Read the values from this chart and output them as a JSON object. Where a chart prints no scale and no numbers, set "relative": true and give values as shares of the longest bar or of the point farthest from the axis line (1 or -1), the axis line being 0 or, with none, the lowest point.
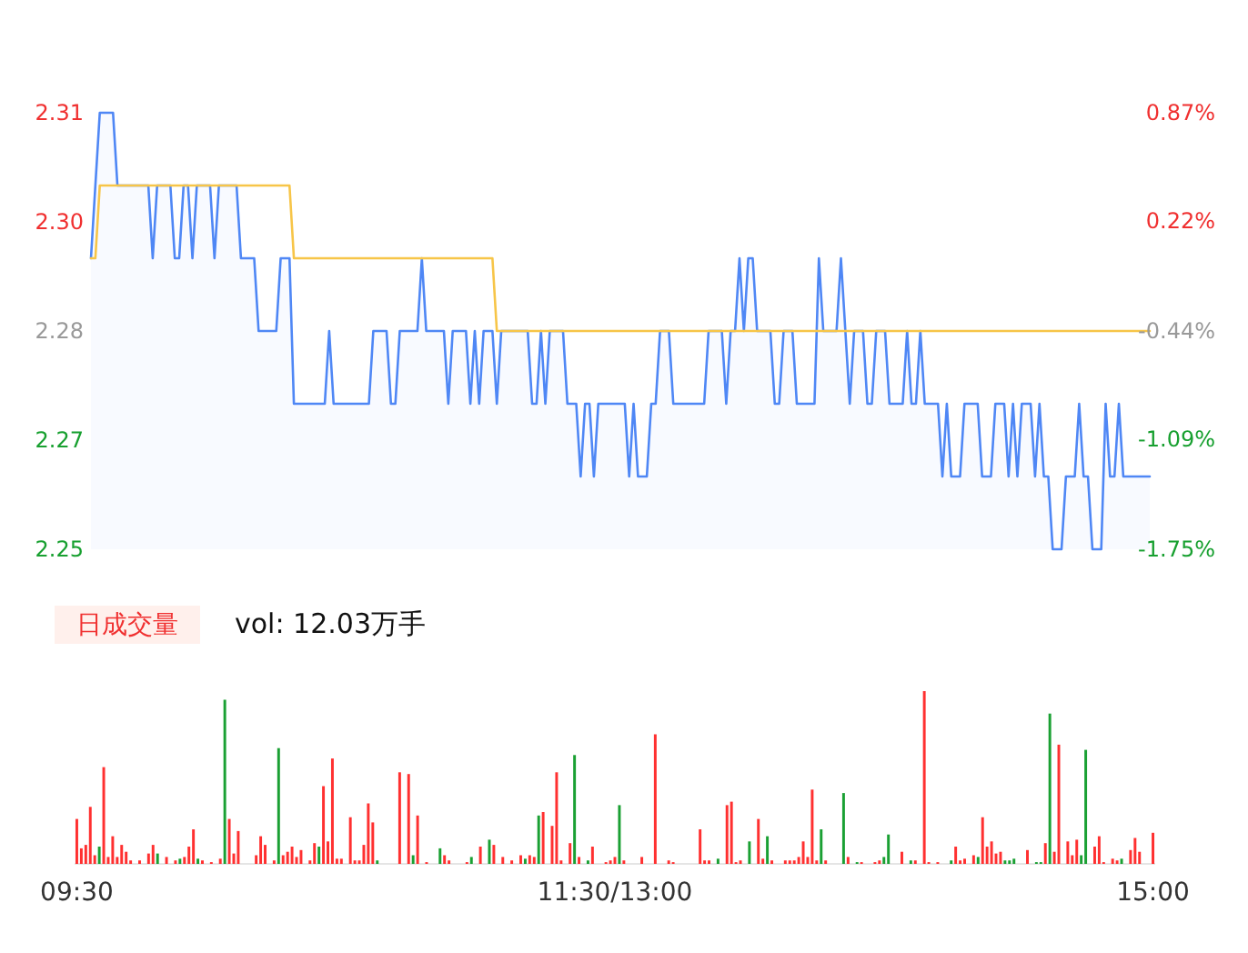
{
  "chart_data": [
    {
      "type": "line",
      "categories": [
        null,
        null,
        null,
        null,
        null,
        null,
        null,
        null,
        null,
        null,
        null,
        null,
        null,
        null,
        null,
        null,
        null,
        null,
        null,
        null,
        null,
        null,
        null,
        null,
        null,
        null,
        null,
        null,
        null,
        null,
        null,
        null,
        null,
        null,
        null,
        null,
        null,
        null,
        null,
        null,
        null,
        null,
        null,
        null,
        null,
        null,
        null,
        null,
        null,
        null,
        null,
        null,
        null,
        null,
        null,
        null,
        null,
        null,
        null,
        null,
        null,
        null,
        null,
        null,
        null,
        null,
        null,
        null,
        null,
        null,
        null,
        null,
        null,
        null,
        null,
        null,
        null,
        null,
        null,
        null,
        null,
        null,
        null,
        null,
        null,
        null,
        null,
        null,
        null,
        null,
        null,
        null,
        null,
        null,
        null,
        null,
        null,
        null,
        null,
        null,
        null,
        null,
        null,
        null,
        null,
        null,
        null,
        null,
        null,
        null,
        null,
        null,
        null,
        null,
        null,
        null,
        null,
        null,
        null,
        null,
        null,
        null,
        null,
        null,
        null,
        null,
        null,
        null,
        null,
        null,
        null,
        null,
        null,
        null,
        null,
        null,
        null,
        null,
        null,
        null,
        null,
        null,
        null,
        null,
        null,
        null,
        null,
        null,
        null,
        null,
        null,
        null,
        null,
        null,
        null,
        null,
        null,
        null,
        null,
        null,
        null,
        null,
        null,
        null,
        null,
        null,
        null,
        null,
        null,
        null,
        null,
        null,
        null,
        null,
        null,
        null,
        null,
        null,
        null,
        null,
        null,
        null,
        null,
        null,
        null,
        null,
        null,
        null,
        null,
        null,
        null,
        null,
        null,
        null,
        null,
        null,
        null,
        null,
        null,
        null,
        null,
        null,
        null,
        null,
        null,
        null,
        null,
        null,
        null,
        null,
        null,
        null,
        null,
        null,
        null,
        null,
        null,
        null,
        null,
        null,
        null,
        null,
        null,
        null,
        null,
        null,
        null,
        null,
        null,
        null,
        null,
        null,
        null,
        null,
        null,
        null,
        null,
        null,
        null,
        null,
        null
      ],
      "ylim": [
        2.25,
        2.31
      ],
      "yticks": [
        2.25,
        {
          "value": 2.265,
          "label": "2.27"
        },
        2.28,
        {
          "value": 2.295,
          "label": "2.30"
        },
        2.31
      ],
      "y2lim": [
        -1.75,
        0.87
      ],
      "y2ticks": [
        {
          "value": -1.75,
          "label": "-1.75%"
        },
        {
          "value": -1.09,
          "label": "-1.09%"
        },
        {
          "value": -0.44,
          "label": "-0.44%"
        },
        {
          "value": 0.22,
          "label": "0.22%"
        },
        {
          "value": 0.87,
          "label": "0.87%"
        }
      ],
      "tick_labels": "y",
      "series": [
        {
          "type": "area",
          "color": "#4f87f5",
          "values": [
            2.29,
            2.3,
            2.31,
            2.31,
            2.31,
            2.31,
            2.3,
            2.3,
            2.3,
            2.3,
            2.3,
            2.3,
            2.3,
            2.3,
            2.29,
            2.3,
            2.3,
            2.3,
            2.3,
            2.29,
            2.29,
            2.3,
            2.3,
            2.29,
            2.3,
            2.3,
            2.3,
            2.3,
            2.29,
            2.3,
            2.3,
            2.3,
            2.3,
            2.3,
            2.29,
            2.29,
            2.29,
            2.29,
            2.28,
            2.28,
            2.28,
            2.28,
            2.28,
            2.29,
            2.29,
            2.29,
            2.27,
            2.27,
            2.27,
            2.27,
            2.27,
            2.27,
            2.27,
            2.27,
            2.28,
            2.27,
            2.27,
            2.27,
            2.27,
            2.27,
            2.27,
            2.27,
            2.27,
            2.27,
            2.28,
            2.28,
            2.28,
            2.28,
            2.27,
            2.27,
            2.28,
            2.28,
            2.28,
            2.28,
            2.28,
            2.29,
            2.28,
            2.28,
            2.28,
            2.28,
            2.28,
            2.27,
            2.28,
            2.28,
            2.28,
            2.28,
            2.27,
            2.28,
            2.27,
            2.28,
            2.28,
            2.28,
            2.27,
            2.28,
            2.28,
            2.28,
            2.28,
            2.28,
            2.28,
            2.28,
            2.27,
            2.27,
            2.28,
            2.27,
            2.28,
            2.28,
            2.28,
            2.28,
            2.27,
            2.27,
            2.27,
            2.26,
            2.27,
            2.27,
            2.26,
            2.27,
            2.27,
            2.27,
            2.27,
            2.27,
            2.27,
            2.27,
            2.26,
            2.27,
            2.26,
            2.26,
            2.26,
            2.27,
            2.27,
            2.28,
            2.28,
            2.28,
            2.27,
            2.27,
            2.27,
            2.27,
            2.27,
            2.27,
            2.27,
            2.27,
            2.28,
            2.28,
            2.28,
            2.28,
            2.27,
            2.28,
            2.28,
            2.29,
            2.28,
            2.29,
            2.29,
            2.28,
            2.28,
            2.28,
            2.28,
            2.27,
            2.27,
            2.28,
            2.28,
            2.28,
            2.27,
            2.27,
            2.27,
            2.27,
            2.27,
            2.29,
            2.28,
            2.28,
            2.28,
            2.28,
            2.29,
            2.28,
            2.27,
            2.28,
            2.28,
            2.28,
            2.27,
            2.27,
            2.28,
            2.28,
            2.28,
            2.27,
            2.27,
            2.27,
            2.27,
            2.28,
            2.27,
            2.27,
            2.28,
            2.27,
            2.27,
            2.27,
            2.27,
            2.26,
            2.27,
            2.26,
            2.26,
            2.26,
            2.27,
            2.27,
            2.27,
            2.27,
            2.26,
            2.26,
            2.26,
            2.27,
            2.27,
            2.27,
            2.26,
            2.27,
            2.26,
            2.27,
            2.27,
            2.27,
            2.26,
            2.27,
            2.26,
            2.26,
            2.25,
            2.25,
            2.25,
            2.26,
            2.26,
            2.26,
            2.27,
            2.26,
            2.26,
            2.25,
            2.25,
            2.25,
            2.27,
            2.26,
            2.26,
            2.27,
            2.26,
            2.26,
            2.26,
            2.26,
            2.26,
            2.26,
            2.26
          ]
        },
        {
          "type": "line",
          "color": "#f7c548",
          "values": [
            2.29,
            2.29,
            2.3,
            2.3,
            2.3,
            2.3,
            2.3,
            2.3,
            2.3,
            2.3,
            2.3,
            2.3,
            2.3,
            2.3,
            2.3,
            2.3,
            2.3,
            2.3,
            2.3,
            2.3,
            2.3,
            2.3,
            2.3,
            2.3,
            2.3,
            2.3,
            2.3,
            2.3,
            2.3,
            2.3,
            2.3,
            2.3,
            2.3,
            2.3,
            2.3,
            2.3,
            2.3,
            2.3,
            2.3,
            2.3,
            2.3,
            2.3,
            2.3,
            2.3,
            2.3,
            2.3,
            2.29,
            2.29,
            2.29,
            2.29,
            2.29,
            2.29,
            2.29,
            2.29,
            2.29,
            2.29,
            2.29,
            2.29,
            2.29,
            2.29,
            2.29,
            2.29,
            2.29,
            2.29,
            2.29,
            2.29,
            2.29,
            2.29,
            2.29,
            2.29,
            2.29,
            2.29,
            2.29,
            2.29,
            2.29,
            2.29,
            2.29,
            2.29,
            2.29,
            2.29,
            2.29,
            2.29,
            2.29,
            2.29,
            2.29,
            2.29,
            2.29,
            2.29,
            2.29,
            2.29,
            2.29,
            2.29,
            2.28,
            2.28,
            2.28,
            2.28,
            2.28,
            2.28,
            2.28,
            2.28,
            2.28,
            2.28,
            2.28,
            2.28,
            2.28,
            2.28,
            2.28,
            2.28,
            2.28,
            2.28,
            2.28,
            2.28,
            2.28,
            2.28,
            2.28,
            2.28,
            2.28,
            2.28,
            2.28,
            2.28,
            2.28,
            2.28,
            2.28,
            2.28,
            2.28,
            2.28,
            2.28,
            2.28,
            2.28,
            2.28,
            2.28,
            2.28,
            2.28,
            2.28,
            2.28,
            2.28,
            2.28,
            2.28,
            2.28,
            2.28,
            2.28,
            2.28,
            2.28,
            2.28,
            2.28,
            2.28,
            2.28,
            2.28,
            2.28,
            2.28,
            2.28,
            2.28,
            2.28,
            2.28,
            2.28,
            2.28,
            2.28,
            2.28,
            2.28,
            2.28,
            2.28,
            2.28,
            2.28,
            2.28,
            2.28,
            2.28,
            2.28,
            2.28,
            2.28,
            2.28,
            2.28,
            2.28,
            2.28,
            2.28,
            2.28,
            2.28,
            2.28,
            2.28,
            2.28,
            2.28,
            2.28,
            2.28,
            2.28,
            2.28,
            2.28,
            2.28,
            2.28,
            2.28,
            2.28,
            2.28,
            2.28,
            2.28,
            2.28,
            2.28,
            2.28,
            2.28,
            2.28,
            2.28,
            2.28,
            2.28,
            2.28,
            2.28,
            2.28,
            2.28,
            2.28,
            2.28,
            2.28,
            2.28,
            2.28,
            2.28,
            2.28,
            2.28,
            2.28,
            2.28,
            2.28,
            2.28,
            2.28,
            2.28,
            2.28,
            2.28,
            2.28,
            2.28,
            2.28,
            2.28,
            2.28,
            2.28,
            2.28,
            2.28,
            2.28,
            2.28,
            2.28,
            2.28,
            2.28,
            2.28,
            2.28,
            2.28,
            2.28,
            2.28,
            2.28,
            2.28,
            2.28
          ]
        }
      ]
    },
    {
      "type": "bar",
      "relative": true,
      "tick_labels": "x",
      "annotations": [
        "日成交量",
        "vol: 12.03万手"
      ],
      "categories": [
        "09:30",
        null,
        null,
        null,
        null,
        null,
        null,
        null,
        null,
        null,
        null,
        null,
        null,
        null,
        null,
        null,
        null,
        null,
        null,
        null,
        null,
        null,
        null,
        null,
        null,
        null,
        null,
        null,
        null,
        null,
        null,
        null,
        null,
        null,
        null,
        null,
        null,
        null,
        null,
        null,
        null,
        null,
        null,
        null,
        null,
        null,
        null,
        null,
        null,
        null,
        null,
        null,
        null,
        null,
        null,
        null,
        null,
        null,
        null,
        null,
        null,
        null,
        null,
        null,
        null,
        null,
        null,
        null,
        null,
        null,
        null,
        null,
        null,
        null,
        null,
        null,
        null,
        null,
        null,
        null,
        null,
        null,
        null,
        null,
        null,
        null,
        null,
        null,
        null,
        null,
        null,
        null,
        null,
        null,
        null,
        null,
        null,
        null,
        null,
        null,
        null,
        null,
        null,
        null,
        null,
        null,
        null,
        null,
        null,
        null,
        null,
        null,
        null,
        null,
        null,
        null,
        null,
        null,
        null,
        null,
        "11:30/13:00",
        null,
        null,
        null,
        null,
        null,
        null,
        null,
        null,
        null,
        null,
        null,
        null,
        null,
        null,
        null,
        null,
        null,
        null,
        null,
        null,
        null,
        null,
        null,
        null,
        null,
        null,
        null,
        null,
        null,
        null,
        null,
        null,
        null,
        null,
        null,
        null,
        null,
        null,
        null,
        null,
        null,
        null,
        null,
        null,
        null,
        null,
        null,
        null,
        null,
        null,
        null,
        null,
        null,
        null,
        null,
        null,
        null,
        null,
        null,
        null,
        null,
        null,
        null,
        null,
        null,
        null,
        null,
        null,
        null,
        null,
        null,
        null,
        null,
        null,
        null,
        null,
        null,
        null,
        null,
        null,
        null,
        null,
        null,
        null,
        null,
        null,
        null,
        null,
        null,
        null,
        null,
        null,
        null,
        null,
        null,
        null,
        null,
        null,
        null,
        null,
        null,
        null,
        null,
        null,
        null,
        null,
        null,
        null,
        null,
        null,
        null,
        null,
        null,
        null,
        null,
        null,
        null,
        null,
        null,
        "15:00"
      ],
      "series": [
        {
          "color": "#ff3030",
          "values": [
            0.26,
            0.09,
            0.11,
            0.33,
            0.05,
            null,
            0.56,
            0.04,
            0.16,
            0.04,
            0.11,
            0.07,
            0.02,
            null,
            0.02,
            null,
            0.06,
            0.11,
            null,
            null,
            0.04,
            null,
            0.02,
            null,
            0.04,
            0.1,
            0.2,
            null,
            0.02,
            null,
            0.01,
            null,
            0.03,
            null,
            0.26,
            0.06,
            0.19,
            null,
            null,
            null,
            0.05,
            0.16,
            0.11,
            null,
            0.02,
            null,
            0.05,
            0.07,
            0.1,
            0.04,
            0.08,
            null,
            0.02,
            0.12,
            null,
            0.45,
            0.13,
            0.61,
            0.03,
            0.03,
            null,
            0.27,
            0.02,
            0.02,
            0.11,
            0.35,
            0.24,
            null,
            null,
            null,
            null,
            null,
            0.53,
            null,
            0.52,
            null,
            0.28,
            null,
            0.01,
            null,
            null,
            null,
            0.05,
            0.02,
            null,
            null,
            null,
            0.01,
            null,
            null,
            0.1,
            null,
            null,
            0.11,
            null,
            0.04,
            null,
            0.02,
            null,
            0.05,
            null,
            0.05,
            0.04,
            null,
            0.3,
            null,
            0.22,
            0.53,
            0.02,
            null,
            0.12,
            null,
            0.04,
            null,
            null,
            0.1,
            null,
            null,
            0.01,
            0.02,
            0.04,
            null,
            0.02,
            null,
            null,
            null,
            0.04,
            null,
            null,
            0.75,
            null,
            null,
            0.02,
            0.01,
            null,
            null,
            null,
            null,
            null,
            0.2,
            0.02,
            0.02,
            null,
            null,
            null,
            0.34,
            0.36,
            0.01,
            0.02,
            null,
            null,
            null,
            0.26,
            0.03,
            null,
            0.02,
            null,
            null,
            0.02,
            0.02,
            0.02,
            0.04,
            0.13,
            0.04,
            0.43,
            0.02,
            null,
            0.02,
            null,
            null,
            null,
            null,
            0.04,
            null,
            null,
            0.01,
            null,
            null,
            0.01,
            0.02,
            null,
            null,
            null,
            null,
            0.07,
            null,
            null,
            0.02,
            null,
            1,
            0.01,
            null,
            0.01,
            null,
            null,
            null,
            0.1,
            0.02,
            0.03,
            null,
            0.05,
            null,
            0.27,
            0.1,
            0.13,
            0.06,
            0.07,
            null,
            null,
            null,
            null,
            null,
            0.08,
            null,
            null,
            null,
            0.12,
            null,
            0.07,
            0.69,
            null,
            0.13,
            0.05,
            0.14,
            null,
            null,
            null,
            0.1,
            0.16,
            0.01,
            null,
            0.03,
            0.02,
            null,
            null,
            0.08,
            0.15,
            0.07,
            null,
            null,
            0.18
          ]
        },
        {
          "color": "#1aa033",
          "values": [
            null,
            null,
            null,
            null,
            null,
            0.1,
            null,
            null,
            null,
            null,
            null,
            null,
            null,
            null,
            null,
            null,
            null,
            null,
            0.06,
            null,
            null,
            null,
            null,
            0.03,
            null,
            null,
            null,
            0.03,
            null,
            null,
            null,
            null,
            null,
            0.95,
            null,
            null,
            null,
            null,
            null,
            null,
            null,
            null,
            null,
            null,
            null,
            0.67,
            null,
            null,
            null,
            null,
            null,
            null,
            null,
            null,
            0.1,
            null,
            null,
            null,
            null,
            null,
            null,
            null,
            null,
            null,
            null,
            null,
            null,
            0.02,
            null,
            null,
            null,
            null,
            null,
            null,
            null,
            0.05,
            null,
            null,
            null,
            null,
            null,
            0.09,
            null,
            null,
            null,
            null,
            null,
            null,
            0.04,
            null,
            null,
            null,
            0.14,
            null,
            null,
            null,
            null,
            null,
            null,
            null,
            0.03,
            null,
            null,
            0.28,
            null,
            null,
            null,
            null,
            null,
            null,
            null,
            0.63,
            null,
            null,
            0.02,
            null,
            null,
            null,
            null,
            null,
            null,
            0.34,
            null,
            null,
            null,
            null,
            null,
            null,
            null,
            null,
            null,
            null,
            null,
            null,
            null,
            null,
            null,
            null,
            null,
            null,
            null,
            null,
            null,
            0.03,
            null,
            null,
            null,
            null,
            null,
            null,
            0.13,
            null,
            null,
            null,
            0.16,
            null,
            null,
            null,
            null,
            null,
            null,
            null,
            null,
            null,
            null,
            null,
            0.2,
            null,
            null,
            null,
            null,
            0.41,
            null,
            null,
            0.01,
            null,
            null,
            null,
            null,
            null,
            0.04,
            0.17,
            null,
            null,
            null,
            null,
            0.02,
            null,
            null,
            null,
            null,
            null,
            null,
            null,
            null,
            0.02,
            null,
            null,
            null,
            null,
            null,
            0.04,
            null,
            null,
            null,
            null,
            null,
            0.02,
            0.02,
            0.03,
            null,
            null,
            null,
            null,
            0.01,
            0.01,
            null,
            0.87,
            null,
            null,
            null,
            null,
            null,
            null,
            0.05,
            0.66,
            null,
            null,
            null,
            null,
            null,
            null,
            null,
            0.03,
            null,
            null,
            null,
            null,
            null,
            null,
            null
          ]
        }
      ]
    }
  ]
}
